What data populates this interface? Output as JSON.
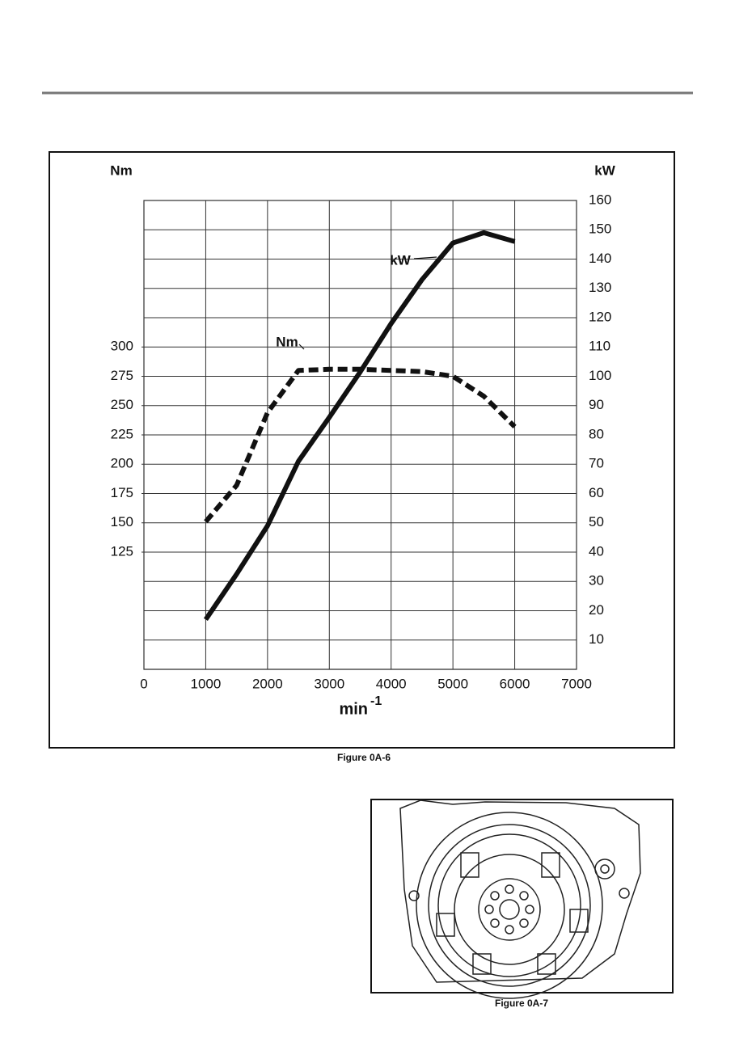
{
  "chart_data": {
    "type": "line",
    "ylabel": "Nm",
    "y2label": "kW",
    "xlabel": "min",
    "xlabel_superscript": "-1",
    "x": [
      1000,
      1500,
      2000,
      2500,
      3000,
      3500,
      4000,
      4500,
      5000,
      5500,
      6000
    ],
    "series": [
      {
        "name": "Nm",
        "color": "#111111",
        "dashed": true,
        "values": [
          151,
          182,
          244,
          280,
          281,
          281,
          280,
          279,
          275,
          258,
          232
        ]
      },
      {
        "name": "kW",
        "color": "#111111",
        "dashed": false,
        "axis": "y2",
        "values": [
          17,
          32.5,
          49,
          71,
          86,
          101.5,
          118,
          133,
          145.5,
          149,
          146
        ]
      }
    ],
    "xlim": [
      0,
      7000
    ],
    "xticks": [
      0,
      1000,
      2000,
      3000,
      4000,
      5000,
      6000,
      7000
    ],
    "ylim": [
      25,
      425
    ],
    "yticks": [
      125,
      150,
      175,
      200,
      225,
      250,
      275,
      300
    ],
    "y2lim": [
      0,
      160
    ],
    "y2ticks": [
      10,
      20,
      30,
      40,
      50,
      60,
      70,
      80,
      90,
      100,
      110,
      120,
      130,
      140,
      150,
      160
    ],
    "grid": true
  },
  "captions": [
    "Figure 0A-6",
    "Figure 0A-7"
  ]
}
